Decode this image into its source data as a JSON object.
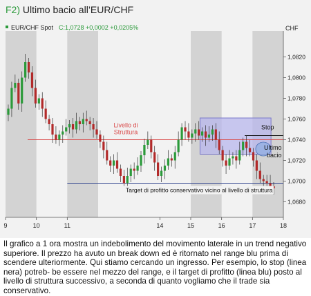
{
  "figure": {
    "number": "F2)",
    "title": "Ultimo bacio all’EUR/CHF"
  },
  "chart_data": {
    "type": "candlestick",
    "symbol_label": "EUR/CHF Spot",
    "quote": "C:1,0728 +0,0002 +0,0205%",
    "ylabel": "CHF",
    "ylim": [
      1.0665,
      1.0845
    ],
    "y_ticks": [
      "1,0820",
      "1,0800",
      "1,0780",
      "1,0760",
      "1,0740",
      "1,0720",
      "1,0700",
      "1,0680"
    ],
    "x_ticks": [
      "9",
      "10",
      "11",
      "14",
      "15",
      "16",
      "17",
      "18"
    ],
    "x_range_days": [
      9,
      18
    ],
    "shaded_sessions": [
      "9",
      "11",
      "15",
      "17"
    ],
    "grid": false,
    "series": [
      {
        "values": [
          1.077,
          1.079,
          1.0795,
          1.0775,
          1.08,
          1.0815,
          1.0805,
          1.079,
          1.0775,
          1.078,
          1.077,
          1.076,
          1.0755,
          1.0745,
          1.074,
          1.0745,
          1.0748,
          1.0752,
          1.0755,
          1.075,
          1.0758,
          1.0755,
          1.076,
          1.0758,
          1.0755,
          1.075,
          1.0745,
          1.0738,
          1.073,
          1.072,
          1.0715,
          1.072,
          1.0712,
          1.0705,
          1.0698,
          1.0705,
          1.0712,
          1.071,
          1.0715,
          1.0725,
          1.0735,
          1.074,
          1.0728,
          1.0718,
          1.0705,
          1.071,
          1.0715,
          1.0722,
          1.072,
          1.0728,
          1.074,
          1.0752,
          1.0748,
          1.0742,
          1.0746,
          1.075,
          1.0744,
          1.0748,
          1.0742,
          1.0745,
          1.075,
          1.074,
          1.073,
          1.072,
          1.0715,
          1.0722,
          1.0724,
          1.072,
          1.073,
          1.0738,
          1.0732,
          1.0728,
          1.072,
          1.071,
          1.0702,
          1.07,
          1.0698,
          1.0695,
          1.0693
        ]
      }
    ],
    "annotations": {
      "structure_level": {
        "label_line1": "Livello di",
        "label_line2": "Struttura",
        "value": 1.074,
        "color": "#d94a4a"
      },
      "range_box": {
        "from_day": 15.3,
        "to_day": 17.6,
        "top": 1.0761,
        "bottom": 1.0726
      },
      "stop": {
        "label": "Stop",
        "value": 1.0744
      },
      "last_kiss": {
        "label_line1": "Ultimo",
        "label_line2": "bacio",
        "day": 17.35,
        "value": 1.0731
      },
      "target": {
        "label": "Target di profitto conservativo vicino al livello di struttura",
        "value": 1.0698,
        "color": "#2b3f8c"
      }
    }
  },
  "caption": "Il grafico a 1 ora mostra un indebolimento del movimento laterale in un trend negativo superiore. Il prezzo ha avuto un break down ed è ritornato nel range blu prima di scendere ulteriormente. Qui stiamo cercando un ingresso. Per esempio, lo stop (linea nera) potreb- be essere nel mezzo del range, e il target di profitto (linea blu) posto al livello di struttura successivo, a seconda di quanto vogliamo che il trade sia conservativo.",
  "colors": {
    "up_candle": "#2b9a3a",
    "down_candle": "#b22a2a",
    "session_shade": "#d3d3d3",
    "range_fill": "#b8b7ec",
    "range_border": "#7a78c9"
  }
}
